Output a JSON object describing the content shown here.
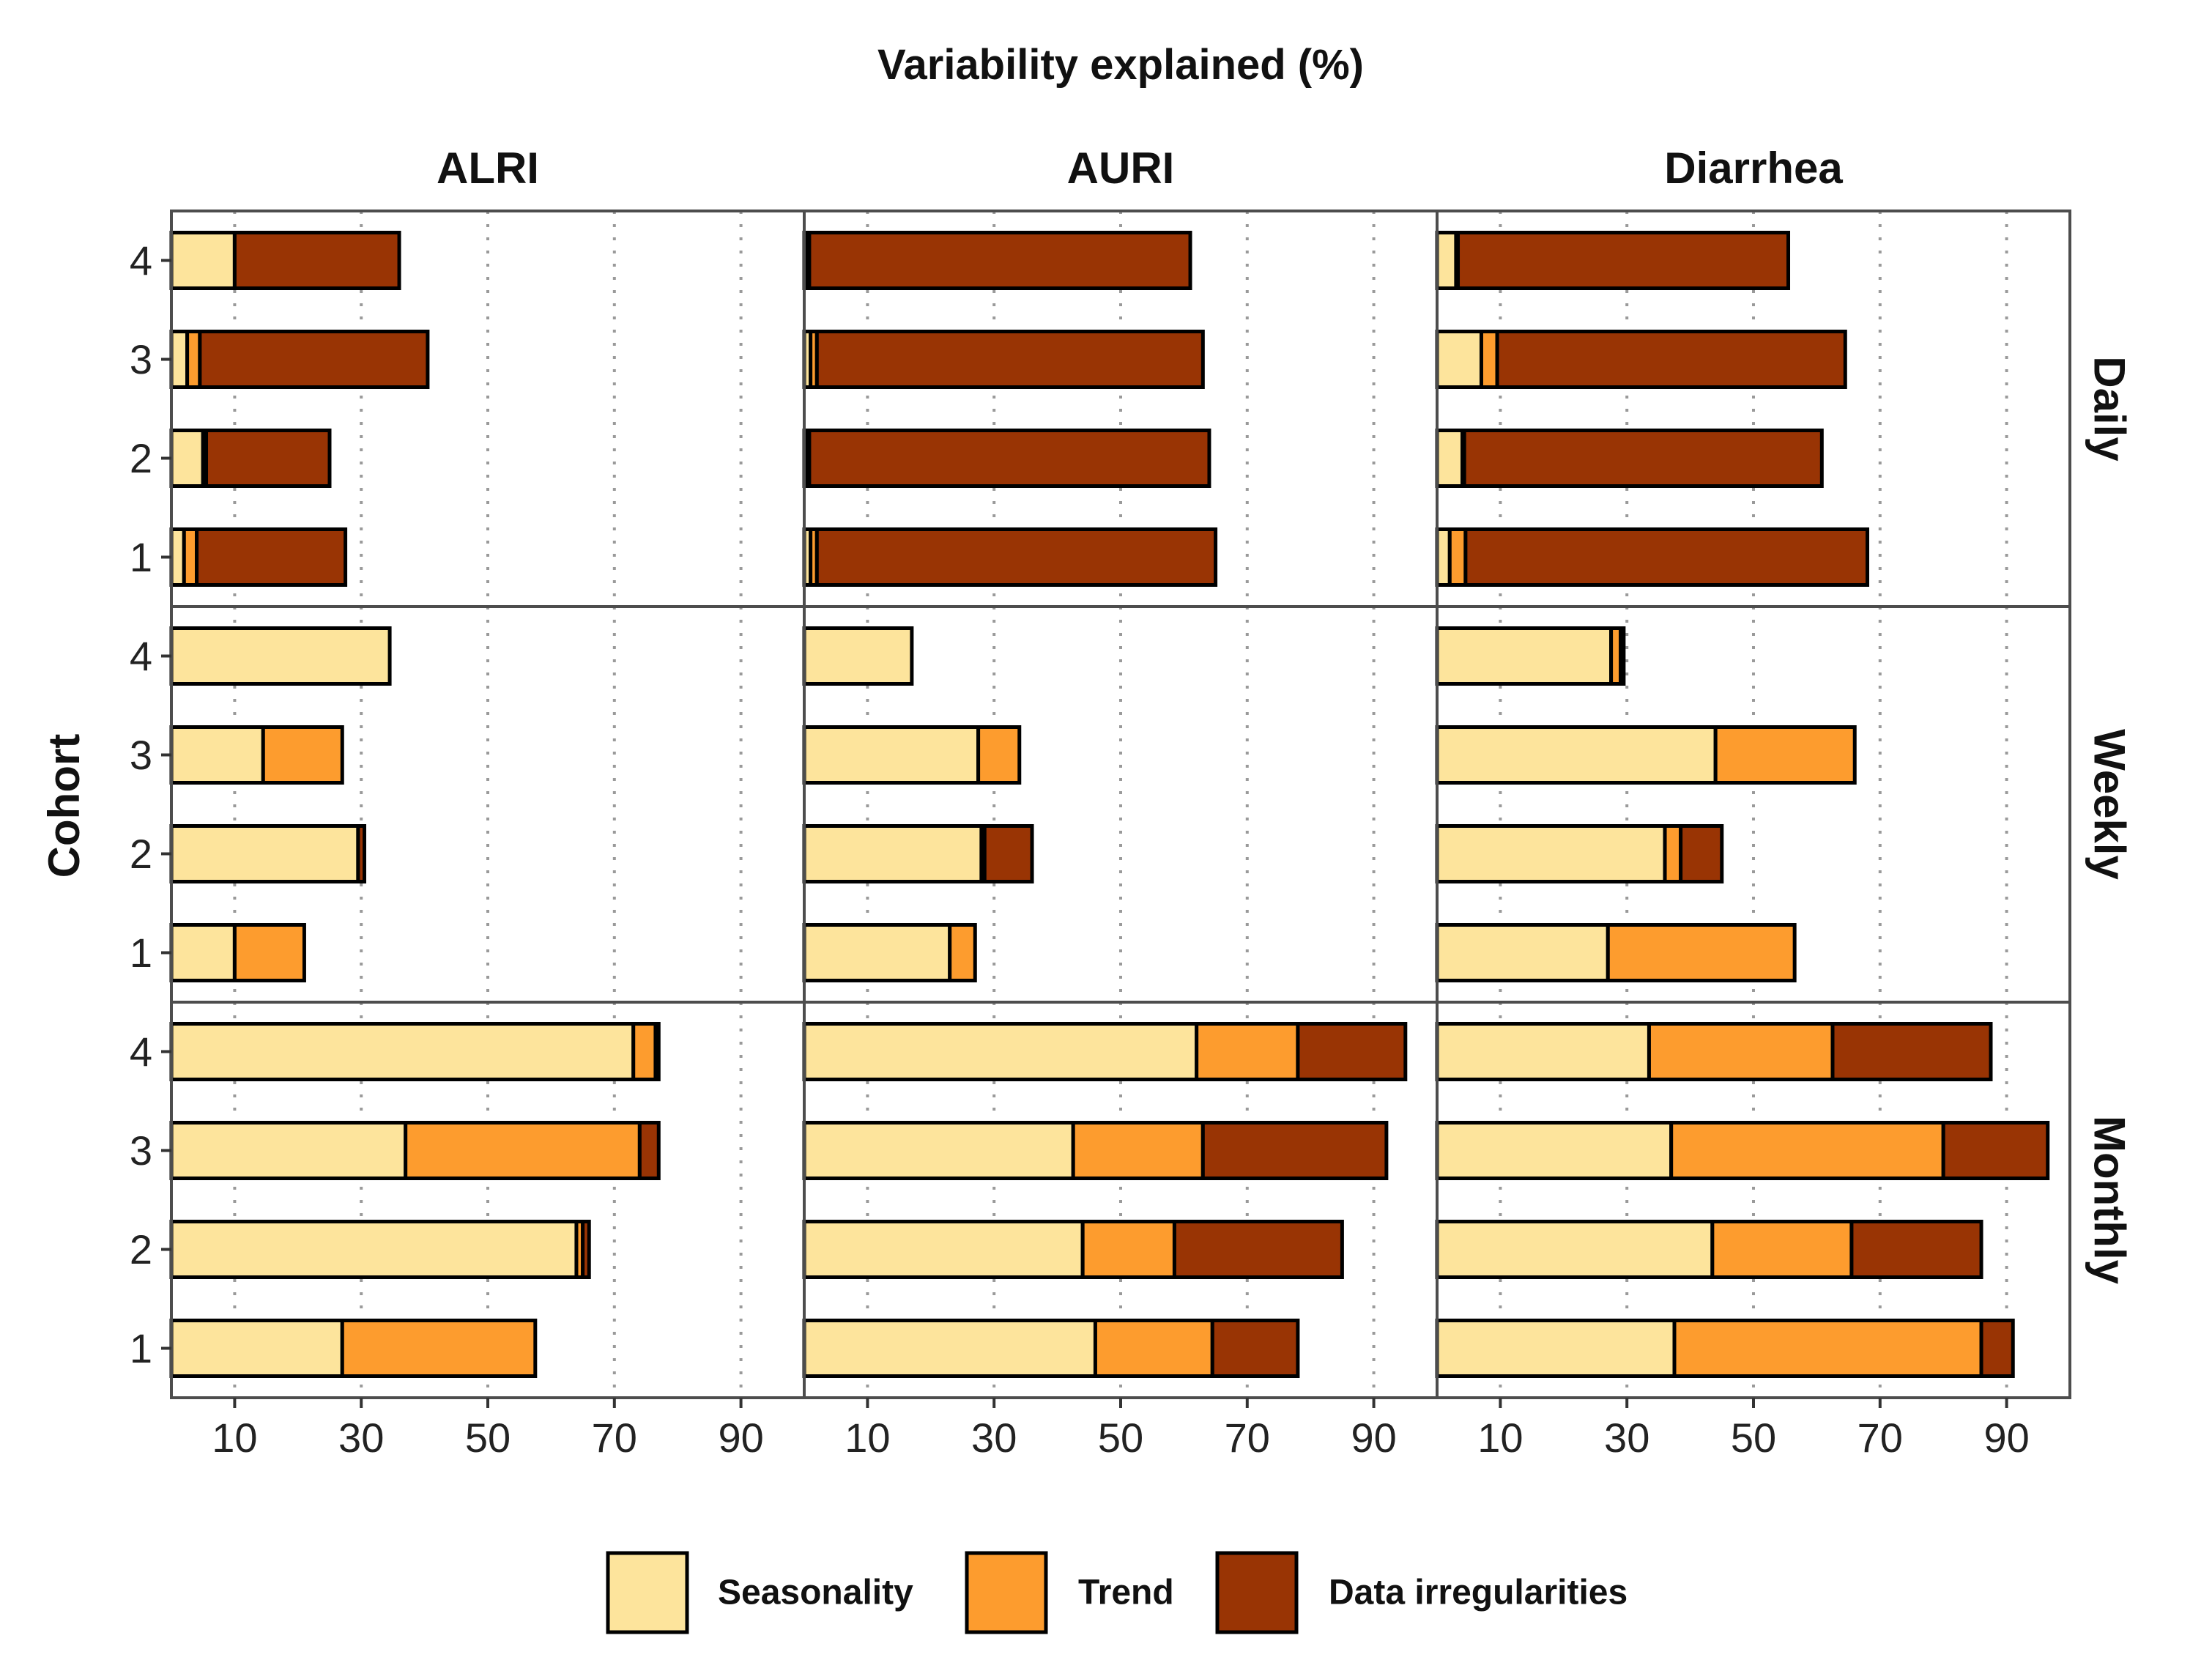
{
  "chart_data": {
    "type": "bar",
    "orientation": "horizontal",
    "stacked": true,
    "title": "Variability explained (%)",
    "ylabel": "Cohort",
    "xlabel": "",
    "xlim": [
      0,
      100
    ],
    "xticks": [
      10,
      30,
      50,
      70,
      90
    ],
    "xtick_labels": [
      "10",
      "30",
      "50",
      "70",
      "90"
    ],
    "gridlines": [
      10,
      30,
      50,
      70,
      90
    ],
    "categories": [
      "1",
      "2",
      "3",
      "4"
    ],
    "columns": [
      "ALRI",
      "AURI",
      "Diarrhea"
    ],
    "rows": [
      "Daily",
      "Weekly",
      "Monthly"
    ],
    "series": [
      {
        "name": "Seasonality",
        "color": "#FDE49C"
      },
      {
        "name": "Trend",
        "color": "#FD9C2E"
      },
      {
        "name": "Data irregularities",
        "color": "#993404"
      }
    ],
    "legend_position": "bottom",
    "panels": [
      {
        "row": "Daily",
        "column": "ALRI",
        "values": [
          [
            2,
            2,
            23.5
          ],
          [
            5,
            0.5,
            19.5
          ],
          [
            2.5,
            2,
            36
          ],
          [
            10,
            0,
            26
          ]
        ]
      },
      {
        "row": "Daily",
        "column": "AURI",
        "values": [
          [
            1,
            1,
            63
          ],
          [
            0.5,
            0.3,
            63.2
          ],
          [
            1,
            1,
            61
          ],
          [
            0.5,
            0.3,
            60.2
          ]
        ]
      },
      {
        "row": "Daily",
        "column": "Diarrhea",
        "values": [
          [
            2,
            2.5,
            63.5
          ],
          [
            4,
            0.3,
            56.5
          ],
          [
            7,
            2.5,
            55
          ],
          [
            3,
            0.3,
            52.2
          ]
        ]
      },
      {
        "row": "Weekly",
        "column": "ALRI",
        "values": [
          [
            10,
            11,
            0
          ],
          [
            29.5,
            0,
            1
          ],
          [
            14.5,
            12.5,
            0
          ],
          [
            34.5,
            0,
            0
          ]
        ]
      },
      {
        "row": "Weekly",
        "column": "AURI",
        "values": [
          [
            23,
            4,
            0
          ],
          [
            28,
            0.5,
            7.5
          ],
          [
            27.5,
            6.5,
            0
          ],
          [
            17,
            0,
            0
          ]
        ]
      },
      {
        "row": "Weekly",
        "column": "Diarrhea",
        "values": [
          [
            27,
            29.5,
            0
          ],
          [
            36,
            2.5,
            6.5
          ],
          [
            44,
            22,
            0
          ],
          [
            27.5,
            1.5,
            0.5
          ]
        ]
      },
      {
        "row": "Monthly",
        "column": "ALRI",
        "values": [
          [
            27,
            30.5,
            0
          ],
          [
            64,
            1,
            1
          ],
          [
            37,
            37,
            3
          ],
          [
            73,
            3.5,
            0.5
          ]
        ]
      },
      {
        "row": "Monthly",
        "column": "AURI",
        "values": [
          [
            46,
            18.5,
            13.5
          ],
          [
            44,
            14.5,
            26.5
          ],
          [
            42.5,
            20.5,
            29
          ],
          [
            62,
            16,
            17
          ]
        ]
      },
      {
        "row": "Monthly",
        "column": "Diarrhea",
        "values": [
          [
            37.5,
            48.5,
            5
          ],
          [
            43.5,
            22,
            20.5
          ],
          [
            37,
            43,
            16.5
          ],
          [
            33.5,
            29,
            25
          ]
        ]
      }
    ]
  }
}
